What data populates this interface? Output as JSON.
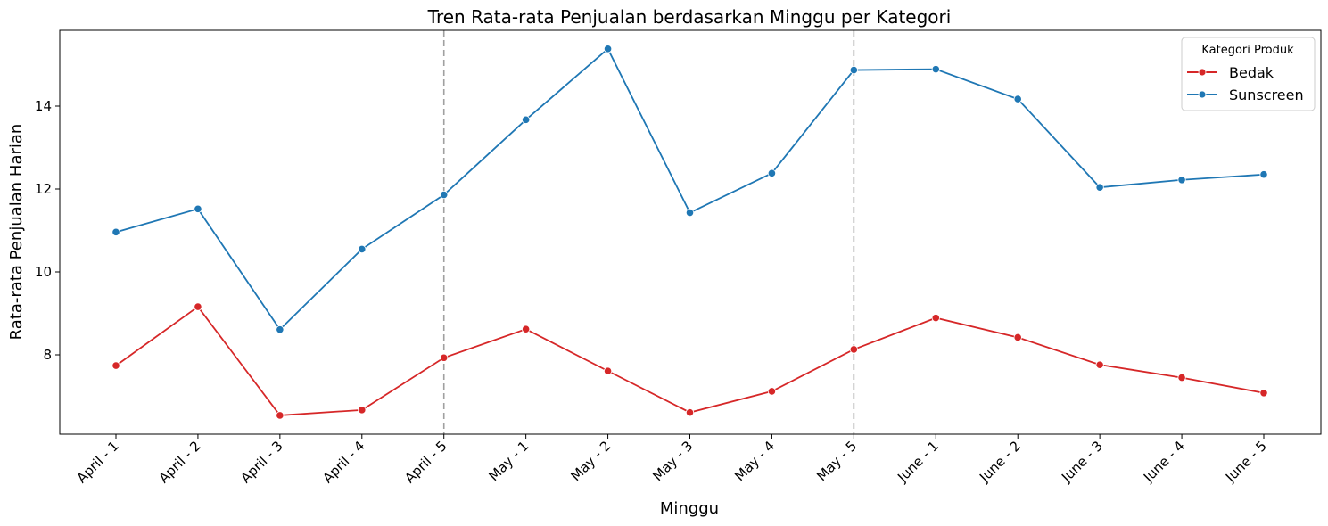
{
  "chart_data": {
    "type": "line",
    "title": "Tren Rata-rata Penjualan berdasarkan Minggu per Kategori",
    "xlabel": "Minggu",
    "ylabel": "Rata-rata Penjualan Harian",
    "categories": [
      "April - 1",
      "April - 2",
      "April - 3",
      "April - 4",
      "April - 5",
      "May - 1",
      "May - 2",
      "May - 3",
      "May - 4",
      "May - 5",
      "June - 1",
      "June - 2",
      "June - 3",
      "June - 4",
      "June - 5"
    ],
    "yticks": [
      "8",
      "10",
      "12",
      "14"
    ],
    "ylim": [
      6.15,
      15.8
    ],
    "series": [
      {
        "name": "Bedak",
        "color": "#d62728",
        "values": [
          7.74,
          9.16,
          6.54,
          6.67,
          7.93,
          8.62,
          7.61,
          6.61,
          7.12,
          8.13,
          8.89,
          8.42,
          7.76,
          7.45,
          7.08
        ]
      },
      {
        "name": "Sunscreen",
        "color": "#1f77b4",
        "values": [
          10.96,
          11.52,
          8.61,
          10.55,
          11.86,
          13.67,
          15.38,
          11.43,
          12.38,
          14.87,
          14.89,
          14.17,
          12.04,
          12.22,
          12.35
        ]
      }
    ],
    "vlines": [
      "April - 5",
      "May - 5"
    ],
    "vline_color": "#a0a0a0",
    "grid": false,
    "legend": {
      "title": "Kategori Produk",
      "placement": "top-right"
    }
  }
}
